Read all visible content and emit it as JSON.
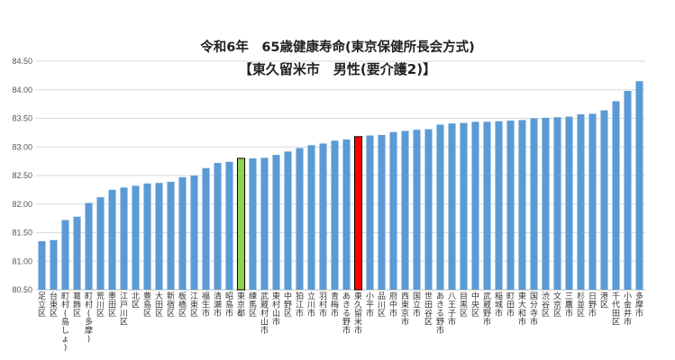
{
  "chart_data": {
    "type": "bar",
    "title": "令和6年　65歳健康寿命(東京保健所長会方式)",
    "subtitle": "【東久留米市　男性(要介護2)】",
    "ylim": [
      80.5,
      84.5
    ],
    "yticks": [
      "80.50",
      "81.00",
      "81.50",
      "82.00",
      "82.50",
      "83.00",
      "83.50",
      "84.00",
      "84.50"
    ],
    "grid": true,
    "colors": {
      "default": "#5b9bd5",
      "highlight_red": "#ff0000",
      "highlight_green": "#92d050"
    },
    "categories": [
      "足立区",
      "台東区",
      "町村(島しょ)",
      "葛飾区",
      "町村(多摩)",
      "荒川区",
      "墨田区",
      "江戸川区",
      "北区",
      "豊島区",
      "大田区",
      "新宿区",
      "板橋区",
      "江東区",
      "福生市",
      "清瀬市",
      "昭島市",
      "東京都",
      "練馬区",
      "武蔵村山市",
      "東村山市",
      "中野区",
      "狛江市",
      "立川市",
      "羽村市",
      "青梅市",
      "あきる野市",
      "東久留米市",
      "小平市",
      "品川区",
      "府中市",
      "西東京市",
      "国立市",
      "世田谷区",
      "あきる野市",
      "八王子市",
      "目黒区",
      "中央区",
      "武蔵野市",
      "稲城市",
      "町田市",
      "東大和市",
      "国分寺市",
      "渋谷区",
      "文京区",
      "三鷹市",
      "杉並区",
      "日野市",
      "港区",
      "千代田区",
      "小金井市",
      "多摩市"
    ],
    "values": [
      81.35,
      81.37,
      81.72,
      81.78,
      82.02,
      82.12,
      82.25,
      82.29,
      82.32,
      82.36,
      82.37,
      82.39,
      82.47,
      82.5,
      82.63,
      82.72,
      82.74,
      82.8,
      82.8,
      82.81,
      82.86,
      82.92,
      82.98,
      83.03,
      83.06,
      83.11,
      83.13,
      83.18,
      83.2,
      83.21,
      83.26,
      83.28,
      83.3,
      83.31,
      83.39,
      83.41,
      83.42,
      83.44,
      83.44,
      83.45,
      83.46,
      83.47,
      83.5,
      83.51,
      83.52,
      83.53,
      83.57,
      83.58,
      83.64,
      83.8,
      83.98,
      84.15
    ],
    "highlight": {
      "東京都": "highlight_green",
      "東久留米市": "highlight_red"
    }
  }
}
